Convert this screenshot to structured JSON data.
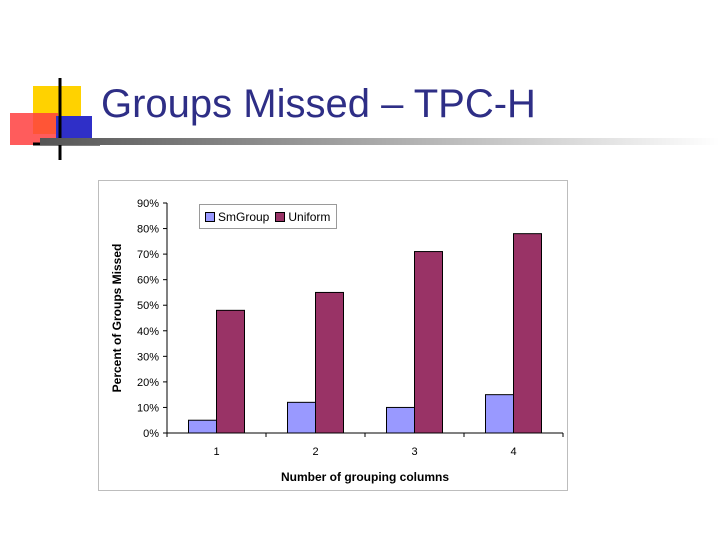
{
  "slide": {
    "title": "Groups Missed – TPC-H"
  },
  "chart_data": {
    "type": "bar",
    "title": "",
    "xlabel": "Number of grouping columns",
    "ylabel": "Percent of Groups Missed",
    "categories": [
      "1",
      "2",
      "3",
      "4"
    ],
    "yticks": [
      "0%",
      "10%",
      "20%",
      "30%",
      "40%",
      "50%",
      "60%",
      "70%",
      "80%",
      "90%"
    ],
    "ylim": [
      0,
      90
    ],
    "grid": false,
    "legend_position": "top",
    "series": [
      {
        "name": "SmGroup",
        "color": "#9999ff",
        "values": [
          5,
          12,
          10,
          15
        ]
      },
      {
        "name": "Uniform",
        "color": "#993366",
        "values": [
          48,
          55,
          71,
          78
        ]
      }
    ]
  },
  "decor": {
    "logo_colors": {
      "yellow": "#ffd200",
      "red": "#ff3b3b",
      "blue": "#2f2fc8",
      "line": "#000000"
    },
    "title_color": "#2e2e86"
  }
}
